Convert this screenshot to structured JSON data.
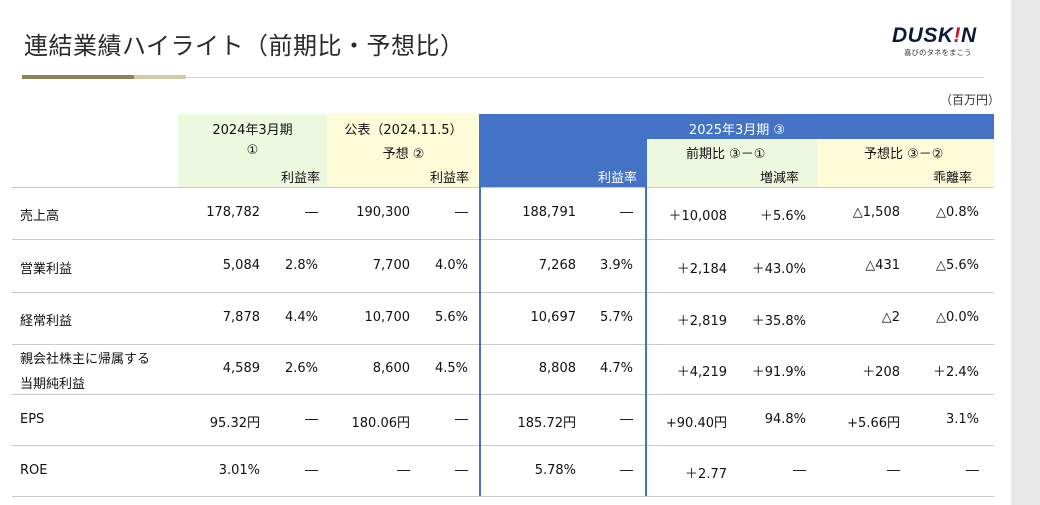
{
  "title": "連結業績ハイライト（前期比・予想比）",
  "logo": {
    "text_main": "DUSK",
    "text_bang": "!",
    "text_end": "N",
    "tagline": "喜びのタネをまこう"
  },
  "unit": "（百万円）",
  "header": {
    "col1_top": "2024年3月期",
    "col1_sub": "①",
    "col1_margin": "利益率",
    "col2_top": "公表（2024.11.5）",
    "col2_sub": "予想 ②",
    "col2_margin": "利益率",
    "col3_top": "2025年3月期 ③",
    "col3_margin": "利益率",
    "col4_sub": "前期比 ③－①",
    "col4_rate": "増減率",
    "col5_sub": "予想比 ③－②",
    "col5_rate": "乖離率"
  },
  "rows": [
    {
      "label1": "売上高",
      "label2": "",
      "v1": "178,782",
      "m1": "―",
      "v2": "190,300",
      "m2": "―",
      "v3": "188,791",
      "m3": "―",
      "d1": "＋10,008",
      "r1": "＋5.6%",
      "d2": "△1,508",
      "r2": "△0.8%"
    },
    {
      "label1": "営業利益",
      "label2": "",
      "v1": "5,084",
      "m1": "2.8%",
      "v2": "7,700",
      "m2": "4.0%",
      "v3": "7,268",
      "m3": "3.9%",
      "d1": "＋2,184",
      "r1": "＋43.0%",
      "d2": "△431",
      "r2": "△5.6%"
    },
    {
      "label1": "経常利益",
      "label2": "",
      "v1": "7,878",
      "m1": "4.4%",
      "v2": "10,700",
      "m2": "5.6%",
      "v3": "10,697",
      "m3": "5.7%",
      "d1": "＋2,819",
      "r1": "＋35.8%",
      "d2": "△2",
      "r2": "△0.0%"
    },
    {
      "label1": "親会社株主に帰属する",
      "label2": "当期純利益",
      "v1": "4,589",
      "m1": "2.6%",
      "v2": "8,600",
      "m2": "4.5%",
      "v3": "8,808",
      "m3": "4.7%",
      "d1": "＋4,219",
      "r1": "＋91.9%",
      "d2": "＋208",
      "r2": "＋2.4%"
    },
    {
      "label1": "EPS",
      "label2": "",
      "v1": "95.32円",
      "m1": "―",
      "v2": "180.06円",
      "m2": "―",
      "v3": "185.72円",
      "m3": "―",
      "d1": "+90.40円",
      "r1": "94.8%",
      "d2": "+5.66円",
      "r2": "3.1%"
    },
    {
      "label1": "ROE",
      "label2": "",
      "v1": "3.01%",
      "m1": "―",
      "v2": "―",
      "m2": "―",
      "v3": "5.78%",
      "m3": "―",
      "d1": "＋2.77",
      "r1": "―",
      "d2": "―",
      "r2": "―"
    }
  ]
}
